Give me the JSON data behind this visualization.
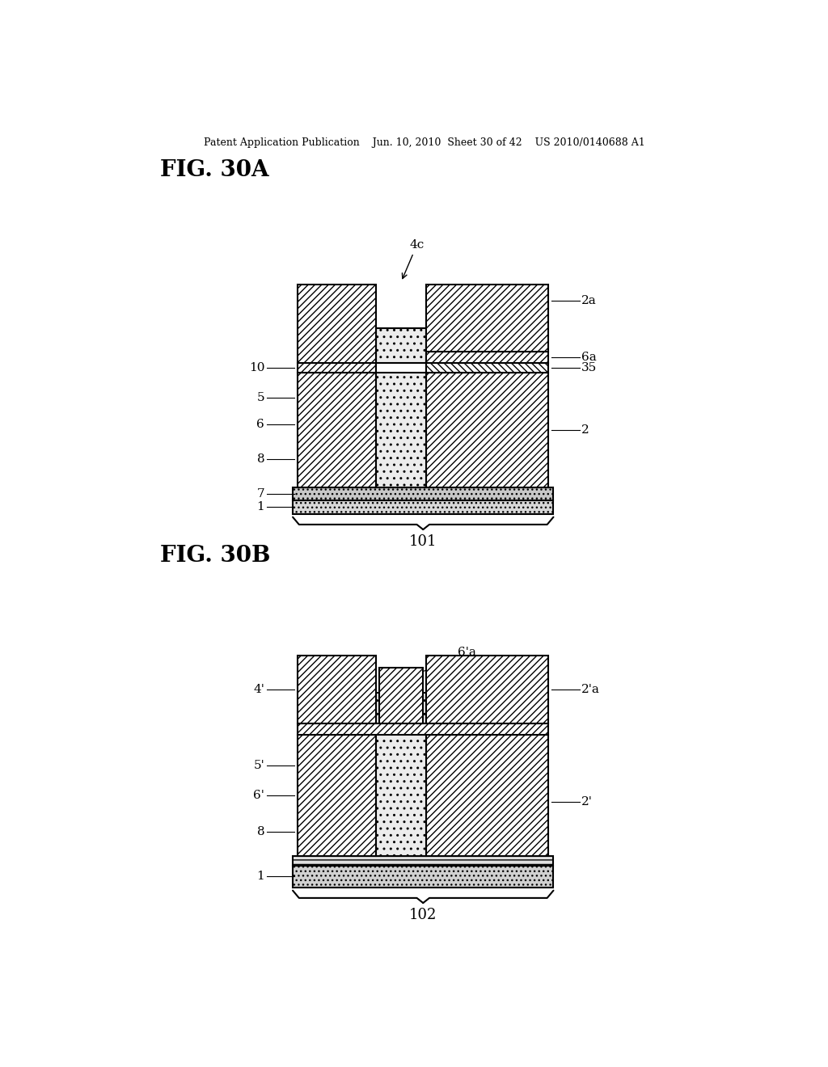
{
  "bg_color": "#ffffff",
  "header_text": "Patent Application Publication    Jun. 10, 2010  Sheet 30 of 42    US 2010/0140688 A1",
  "fig_30a_title": "FIG. 30A",
  "fig_30b_title": "FIG. 30B",
  "label_101": "101",
  "label_102": "102"
}
